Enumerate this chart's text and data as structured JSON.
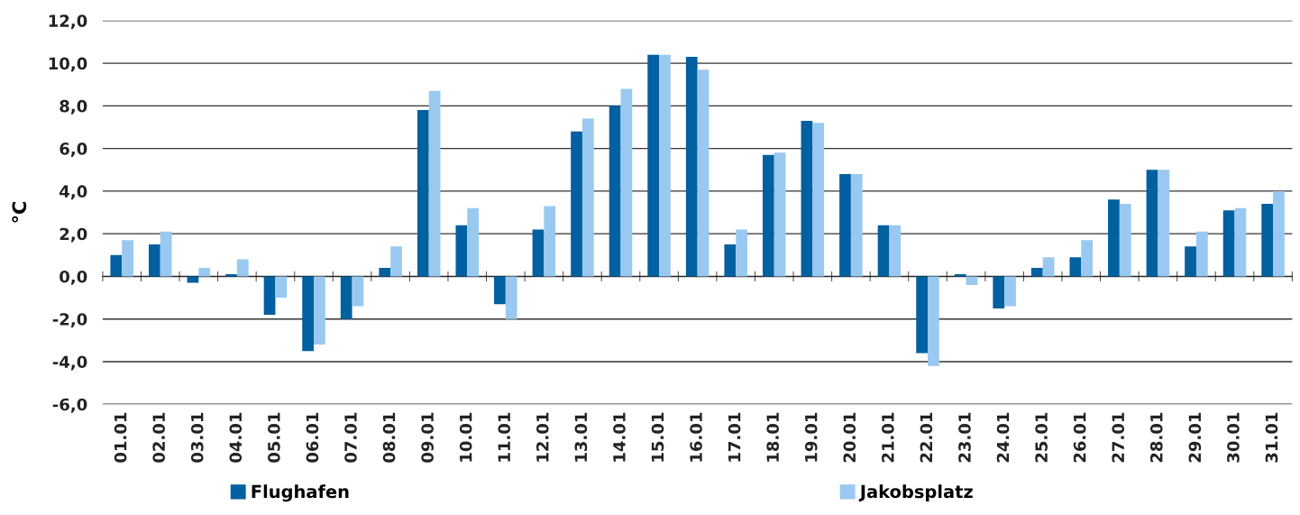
{
  "chart_data": {
    "type": "bar",
    "ylabel": "°C",
    "categories": [
      "01.01",
      "02.01",
      "03.01",
      "04.01",
      "05.01",
      "06.01",
      "07.01",
      "08.01",
      "09.01",
      "10.01",
      "11.01",
      "12.01",
      "13.01",
      "14.01",
      "15.01",
      "16.01",
      "17.01",
      "18.01",
      "19.01",
      "20.01",
      "21.01",
      "22.01",
      "23.01",
      "24.01",
      "25.01",
      "26.01",
      "27.01",
      "28.01",
      "29.01",
      "30.01",
      "31.01"
    ],
    "series": [
      {
        "name": "Flughafen",
        "color": "#0060a0",
        "values": [
          1.0,
          1.5,
          -0.3,
          0.1,
          -1.8,
          -3.5,
          -2.0,
          0.4,
          7.8,
          2.4,
          -1.3,
          2.2,
          6.8,
          8.0,
          10.4,
          10.3,
          1.5,
          5.7,
          7.3,
          4.8,
          2.4,
          -3.6,
          0.1,
          -1.5,
          0.4,
          0.9,
          3.6,
          5.0,
          1.4,
          3.1,
          3.4
        ]
      },
      {
        "name": "Jakobsplatz",
        "color": "#99c9f0",
        "values": [
          1.7,
          2.1,
          0.4,
          0.8,
          -1.0,
          -3.2,
          -1.4,
          1.4,
          8.7,
          3.2,
          -2.0,
          3.3,
          7.4,
          8.8,
          10.4,
          9.7,
          2.2,
          5.8,
          7.2,
          4.8,
          2.4,
          -4.2,
          -0.4,
          -1.4,
          0.9,
          1.7,
          3.4,
          5.0,
          2.1,
          3.2,
          4.0
        ]
      }
    ],
    "ylim": [
      -6,
      12
    ],
    "yticks": [
      {
        "value": -6,
        "label": "-6,0"
      },
      {
        "value": -4,
        "label": "-4,0"
      },
      {
        "value": -2,
        "label": "-2,0"
      },
      {
        "value": 0,
        "label": "0,0"
      },
      {
        "value": 2,
        "label": "2,0"
      },
      {
        "value": 4,
        "label": "4,0"
      },
      {
        "value": 6,
        "label": "6,0"
      },
      {
        "value": 8,
        "label": "8,0"
      },
      {
        "value": 10,
        "label": "10,0"
      },
      {
        "value": 12,
        "label": "12,0"
      }
    ],
    "grid": "y",
    "legend": "bottom"
  }
}
